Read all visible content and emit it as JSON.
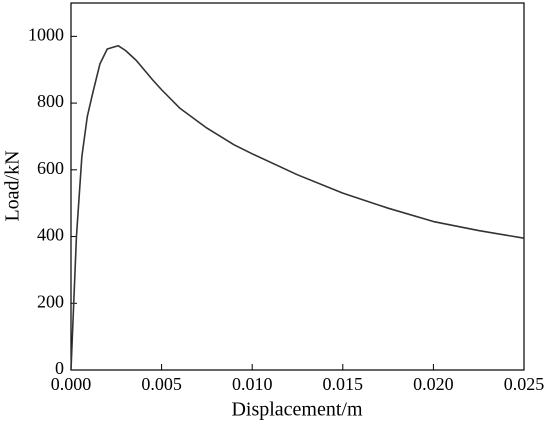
{
  "chart_data": {
    "type": "line",
    "xlabel": "Displacement/m",
    "ylabel": "Load/kN",
    "x": [
      0,
      0.0003,
      0.0006,
      0.0009,
      0.0012,
      0.0016,
      0.002,
      0.0026,
      0.003,
      0.0036,
      0.0045,
      0.005,
      0.006,
      0.0075,
      0.009,
      0.01,
      0.0125,
      0.015,
      0.0175,
      0.02,
      0.0225,
      0.025
    ],
    "values": [
      0,
      400,
      640,
      760,
      830,
      918,
      962,
      972,
      958,
      928,
      870,
      840,
      785,
      725,
      675,
      648,
      585,
      530,
      485,
      445,
      418,
      395
    ],
    "color": "#333333",
    "xlim": [
      0,
      0.025
    ],
    "xticks": [
      {
        "value": 0,
        "label": "0.000"
      },
      {
        "value": 0.005,
        "label": "0.005"
      },
      {
        "value": 0.01,
        "label": "0.010"
      },
      {
        "value": 0.015,
        "label": "0.015"
      },
      {
        "value": 0.02,
        "label": "0.020"
      },
      {
        "value": 0.025,
        "label": "0.025"
      }
    ],
    "ylim": [
      0,
      1100
    ],
    "yticks": [
      0,
      200,
      400,
      600,
      800,
      1000
    ]
  }
}
